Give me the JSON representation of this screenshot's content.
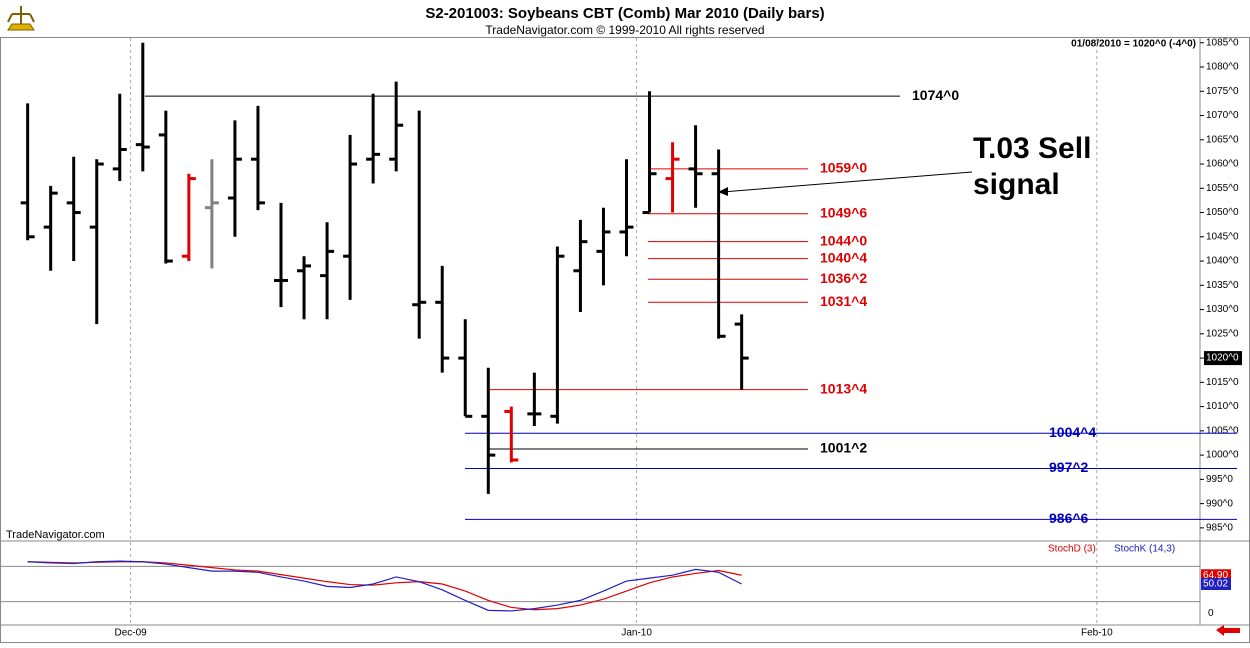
{
  "window": {
    "title": "S2-201003:  Soybeans CBT (Comb) Mar 2010  (Daily bars)",
    "subtitle": "TradeNavigator.com © 1999-2010 All rights reserved",
    "watermark": "TradeNavigator.com"
  },
  "chart_data": [
    {
      "type": "ohlc",
      "header": "01/08/2010 = 1020^0 (-4^0)",
      "last_label": "1020^0",
      "annotation": "T.03 Sell\nsignal",
      "xlim": [
        -1.2,
        50.9
      ],
      "xticks": [
        {
          "value": 4.47,
          "label": "Dec-09"
        },
        {
          "value": 26.44,
          "label": "Jan-10"
        },
        {
          "value": 46.42,
          "label": "Feb-10"
        }
      ],
      "ylim": [
        982.5,
        1086.6
      ],
      "yticks": [
        {
          "value": 985,
          "label": "985^0"
        },
        {
          "value": 990,
          "label": "990^0"
        },
        {
          "value": 995,
          "label": "995^0"
        },
        {
          "value": 1000,
          "label": "1000^0"
        },
        {
          "value": 1005,
          "label": "1005^0"
        },
        {
          "value": 1010,
          "label": "1010^0"
        },
        {
          "value": 1015,
          "label": "1015^0"
        },
        {
          "value": 1020,
          "label": "1020^0"
        },
        {
          "value": 1025,
          "label": "1025^0"
        },
        {
          "value": 1030,
          "label": "1030^0"
        },
        {
          "value": 1035,
          "label": "1035^0"
        },
        {
          "value": 1040,
          "label": "1040^0"
        },
        {
          "value": 1045,
          "label": "1045^0"
        },
        {
          "value": 1050,
          "label": "1050^0"
        },
        {
          "value": 1055,
          "label": "1055^0"
        },
        {
          "value": 1060,
          "label": "1060^0"
        },
        {
          "value": 1065,
          "label": "1065^0"
        },
        {
          "value": 1070,
          "label": "1070^0"
        },
        {
          "value": 1075,
          "label": "1075^0"
        },
        {
          "value": 1080,
          "label": "1080^0"
        },
        {
          "value": 1085,
          "label": "1085^0"
        }
      ],
      "open": [
        1052,
        1047,
        1052,
        1047,
        1059,
        1064,
        1066,
        1041,
        1051,
        1053,
        1061,
        1036,
        1038,
        1037,
        1041,
        1061,
        1061,
        1031,
        1031.5,
        1020,
        1008,
        1009,
        1008.5,
        1008,
        1038,
        1042,
        1046,
        1050,
        1057,
        1059,
        1058,
        1027
      ],
      "high": [
        1072.5,
        1055.5,
        1061.5,
        1061,
        1074.5,
        1085,
        1071,
        1058,
        1061,
        1069,
        1072,
        1052,
        1041,
        1048,
        1066,
        1074.5,
        1077,
        1071,
        1039,
        1028,
        1018,
        1010,
        1017,
        1043,
        1048.5,
        1051,
        1061,
        1075,
        1064.5,
        1068,
        1063,
        1029
      ],
      "low": [
        1044.3,
        1038,
        1040,
        1027,
        1056.5,
        1058.5,
        1039.5,
        1040,
        1038.5,
        1045,
        1050.5,
        1030.5,
        1028,
        1028,
        1032,
        1056,
        1058.5,
        1024,
        1017,
        1008,
        992,
        998.5,
        1006,
        1006.5,
        1029.5,
        1035,
        1041,
        1050,
        1050,
        1051,
        1024,
        1013.5
      ],
      "close": [
        1045,
        1054,
        1050,
        1060,
        1063,
        1063.5,
        1040,
        1057,
        1052,
        1061,
        1052,
        1036,
        1039,
        1042,
        1060,
        1062,
        1068,
        1031.5,
        1020,
        1008,
        1000,
        999,
        1008.5,
        1041,
        1044,
        1046,
        1047,
        1058,
        1061,
        1058,
        1024.5,
        1020
      ],
      "colors": [
        "#000",
        "#000",
        "#000",
        "#000",
        "#000",
        "#000",
        "#000",
        "#e00000",
        "#808080",
        "#000",
        "#000",
        "#000",
        "#000",
        "#000",
        "#000",
        "#000",
        "#000",
        "#000",
        "#000",
        "#000",
        "#000",
        "#e00000",
        "#000",
        "#000",
        "#000",
        "#000",
        "#000",
        "#000",
        "#e00000",
        "#000",
        "#000",
        "#000"
      ],
      "levels": [
        {
          "value": 1074,
          "label": "1074^0",
          "color": "#000000"
        },
        {
          "value": 1059,
          "label": "1059^0",
          "color": "#e00000"
        },
        {
          "value": 1049.75,
          "label": "1049^6",
          "color": "#e00000"
        },
        {
          "value": 1044,
          "label": "1044^0",
          "color": "#e00000"
        },
        {
          "value": 1040.5,
          "label": "1040^4",
          "color": "#e00000"
        },
        {
          "value": 1036.25,
          "label": "1036^2",
          "color": "#e00000"
        },
        {
          "value": 1031.5,
          "label": "1031^4",
          "color": "#e00000"
        },
        {
          "value": 1013.5,
          "label": "1013^4",
          "color": "#e00000"
        },
        {
          "value": 1004.5,
          "label": "1004^4",
          "color": "#0000c0"
        },
        {
          "value": 1001.25,
          "label": "1001^2",
          "color": "#000000"
        },
        {
          "value": 997.25,
          "label": "997^2",
          "color": "#0000c0"
        },
        {
          "value": 986.75,
          "label": "986^6",
          "color": "#0000c0"
        }
      ]
    },
    {
      "type": "line",
      "ylim": [
        -20,
        120
      ],
      "yticks": [
        0
      ],
      "levels": [
        80,
        20
      ],
      "series": [
        {
          "name": "StochD (3)",
          "color": "#e00000",
          "last_label": "64.90",
          "values": [
            88,
            87,
            86,
            87,
            88,
            88,
            86,
            82,
            78,
            74,
            72,
            66,
            60,
            54,
            49,
            48,
            52,
            54,
            50,
            38,
            22,
            10,
            6,
            8,
            14,
            24,
            38,
            52,
            62,
            68,
            73,
            64.9
          ]
        },
        {
          "name": "StochK (14,3)",
          "color": "#2020c0",
          "last_label": "50.02",
          "values": [
            88,
            86,
            85,
            88,
            89,
            88,
            84,
            78,
            72,
            72,
            70,
            62,
            55,
            46,
            44,
            50,
            62,
            54,
            40,
            22,
            5,
            4,
            8,
            14,
            22,
            38,
            55,
            60,
            65,
            75,
            70,
            50.02
          ]
        }
      ]
    }
  ]
}
